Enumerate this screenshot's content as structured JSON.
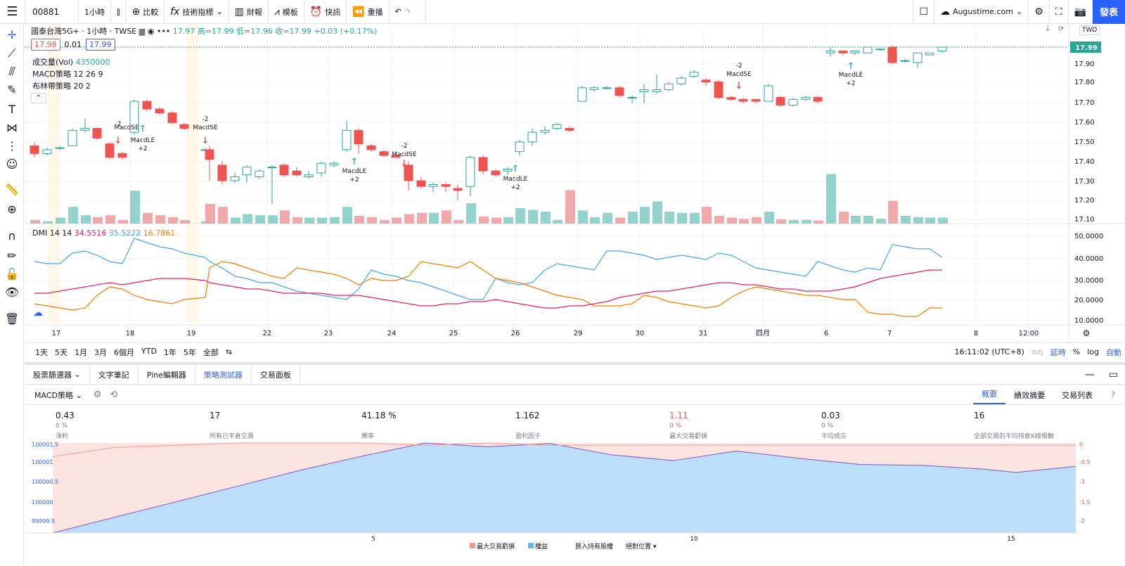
{
  "topbar": {
    "symbol": "00881",
    "interval": "1小時",
    "compare": "比較",
    "indicators": "技術指標",
    "financials": "財報",
    "templates": "模板",
    "alerts": "快訊",
    "replay": "重播",
    "site": "Augustime.com",
    "publish": "發表"
  },
  "legend": {
    "title": "國泰台灣5G+ · 1小時 · TWSE",
    "ohlc": "17.97 高=17.99 低=17.96 收=17.99 +0.03 (+0.17%)",
    "bid": "17.98",
    "spread": "0.01",
    "ask": "17.99",
    "volume_label": "成交量(Vol)",
    "volume_value": "4350000",
    "macd": "MACD策略 12 26 9",
    "bollinger": "布林帶策略 20 2",
    "currency": "TWD",
    "last_price": "17.99"
  },
  "dmi": {
    "label": "DMI 14 14",
    "v1": "34.5516",
    "v2": "35.5222",
    "v3": "16.7861"
  },
  "price_axis": [
    "17.99",
    "17.90",
    "17.80",
    "17.70",
    "17.60",
    "17.50",
    "17.40",
    "17.30",
    "17.20",
    "17.10"
  ],
  "dmi_axis": [
    "50.0000",
    "40.0000",
    "30.0000",
    "20.0000",
    "10.0000"
  ],
  "time_axis": [
    "17",
    "18",
    "19",
    "22",
    "23",
    "24",
    "25",
    "26",
    "29",
    "30",
    "31",
    "四月",
    "6",
    "7",
    "8",
    "12:00"
  ],
  "signals": [
    {
      "t": "-2"
    },
    {
      "t": "MacdSE"
    },
    {
      "t": "MacdLE"
    },
    {
      "t": "+2"
    },
    {
      "t": "-2"
    },
    {
      "t": "MacdSE"
    },
    {
      "t": "MacdLE"
    },
    {
      "t": "+2"
    },
    {
      "t": "-2"
    },
    {
      "t": "MacdSE"
    },
    {
      "t": "MacdLE"
    },
    {
      "t": "+2"
    },
    {
      "t": "-2"
    },
    {
      "t": "MacdSE"
    },
    {
      "t": "MacdLE"
    },
    {
      "t": "+2"
    }
  ],
  "ranges": [
    "1天",
    "5天",
    "1月",
    "3月",
    "6個月",
    "YTD",
    "1年",
    "5年",
    "全部"
  ],
  "clock": "16:11:02 (UTC+8)",
  "axis_opts": [
    "adj",
    "延時",
    "%",
    "log",
    "自動"
  ],
  "panel_tabs": [
    "股票篩選器",
    "文字筆記",
    "Pine編輯器",
    "策略測試器",
    "交易面板"
  ],
  "strategy": {
    "name": "MACD策略",
    "tabs": [
      "概要",
      "績效摘要",
      "交易列表"
    ]
  },
  "metrics": [
    {
      "v": "0.43",
      "s": "0 %",
      "l": "淨利"
    },
    {
      "v": "17",
      "s": "",
      "l": "所有已平倉交易"
    },
    {
      "v": "41.18 %",
      "s": "",
      "l": "勝率"
    },
    {
      "v": "1.162",
      "s": "",
      "l": "盈利因子"
    },
    {
      "v": "1.11",
      "s": "0 %",
      "l": "最大交易虧損"
    },
    {
      "v": "0.03",
      "s": "0 %",
      "l": "平均成交"
    },
    {
      "v": "16",
      "s": "",
      "l": "全部交易的平均持倉K線根數"
    }
  ],
  "equity_axis_left": [
    "100001.5",
    "100001",
    "100000.5",
    "100000",
    "99999.5"
  ],
  "equity_axis_right": [
    "0",
    "-0.5",
    "-1",
    "-1.5",
    "-2"
  ],
  "equity_x": [
    "5",
    "10",
    "15"
  ],
  "equity_legend": [
    "最大交易虧損",
    "權益",
    "買入持有股權",
    "絕對位置"
  ],
  "colors": {
    "up": "#26a69a",
    "down": "#ef5350",
    "accent": "#2962ff",
    "orange": "#f57c00",
    "pink": "#e91e63",
    "blue": "#42a5f5"
  }
}
